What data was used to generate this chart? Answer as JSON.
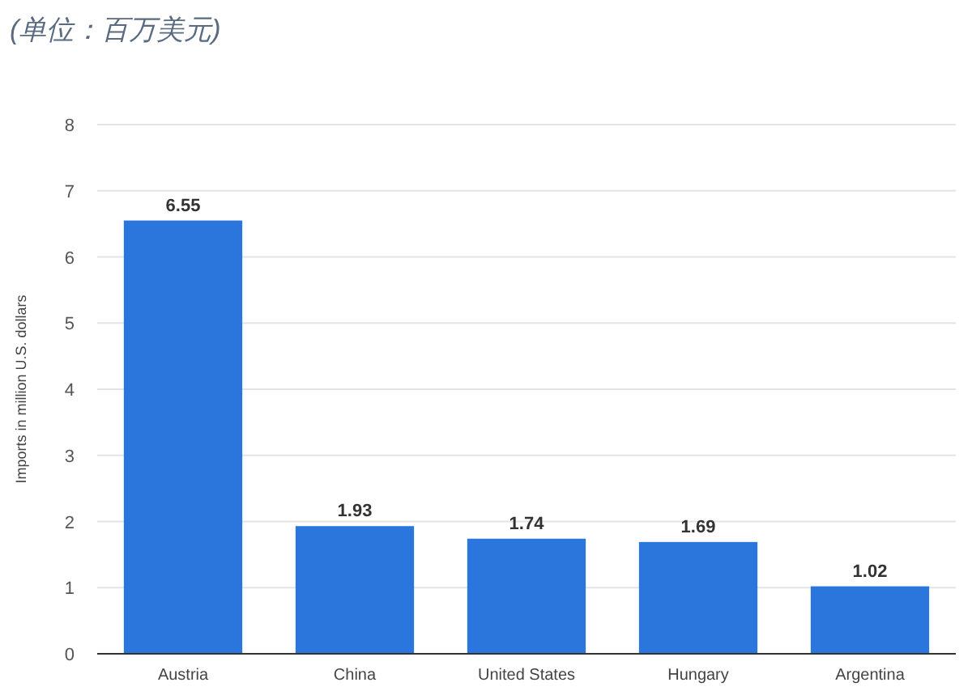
{
  "chart_data": {
    "type": "bar",
    "title": "(单位：百万美元)",
    "ylabel": "Imports in million U.S. dollars",
    "categories": [
      "Austria",
      "China",
      "United States",
      "Hungary",
      "Argentina"
    ],
    "values": [
      6.55,
      1.93,
      1.74,
      1.69,
      1.02
    ],
    "color": "#2a76dd",
    "ylim": [
      0,
      8
    ],
    "yticks": [
      0,
      1,
      2,
      3,
      4,
      5,
      6,
      7,
      8
    ],
    "grid": "y",
    "data_labels": true
  }
}
